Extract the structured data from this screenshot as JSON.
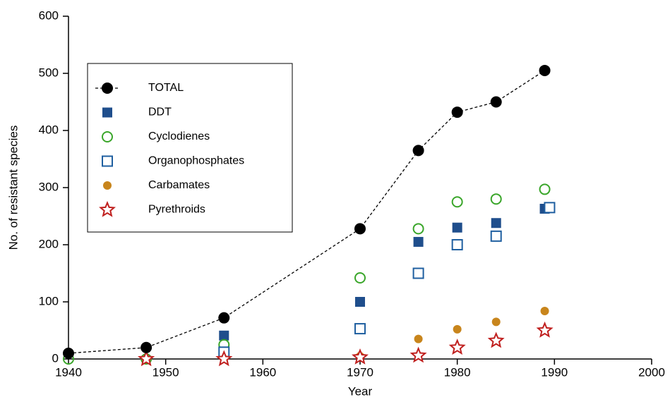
{
  "chart_data": {
    "type": "scatter",
    "xlabel": "Year",
    "ylabel": "No. of resistant species",
    "xlim": [
      1940,
      2000
    ],
    "xticks": [
      1940,
      1950,
      1960,
      1970,
      1980,
      1990,
      2000
    ],
    "ylim": [
      0,
      600
    ],
    "yticks": [
      0,
      100,
      200,
      300,
      400,
      500,
      600
    ],
    "series": [
      {
        "name": "TOTAL",
        "color": "#000000",
        "marker": "filled-circle",
        "line": "dashed",
        "x": [
          1940,
          1948,
          1956,
          1970,
          1976,
          1980,
          1984,
          1989
        ],
        "values": [
          10,
          20,
          72,
          228,
          365,
          432,
          450,
          505
        ]
      },
      {
        "name": "DDT",
        "color": "#1f4e8c",
        "marker": "filled-square",
        "x": [
          1956,
          1970,
          1976,
          1980,
          1984,
          1989
        ],
        "values": [
          41,
          100,
          205,
          230,
          238,
          263
        ]
      },
      {
        "name": "Cyclodienes",
        "color": "#3aa62a",
        "marker": "open-circle",
        "x": [
          1940,
          1948,
          1956,
          1970,
          1976,
          1980,
          1984,
          1989
        ],
        "values": [
          0,
          0,
          25,
          142,
          228,
          275,
          280,
          297
        ]
      },
      {
        "name": "Organophosphates",
        "color": "#1f5fa0",
        "marker": "open-square",
        "x": [
          1956,
          1970,
          1976,
          1980,
          1984,
          1989.5
        ],
        "values": [
          12,
          53,
          150,
          200,
          215,
          265
        ]
      },
      {
        "name": "Carbamates",
        "color": "#c8851c",
        "marker": "small-circle",
        "x": [
          1970,
          1976,
          1980,
          1984,
          1989
        ],
        "values": [
          5,
          35,
          52,
          65,
          84
        ]
      },
      {
        "name": "Pyrethroids",
        "color": "#c0201f",
        "marker": "open-star",
        "x": [
          1948,
          1956,
          1970,
          1976,
          1980,
          1984,
          1989
        ],
        "values": [
          0,
          0,
          3,
          6,
          20,
          32,
          50
        ]
      }
    ]
  }
}
